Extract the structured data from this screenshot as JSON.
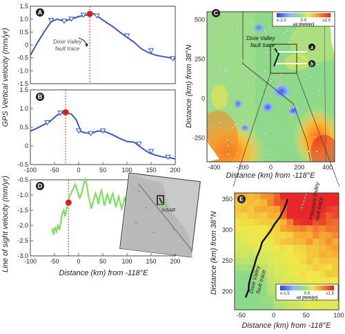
{
  "panels": {
    "A": {
      "letter": "A",
      "annotation_line1": "Dixie Valley",
      "annotation_line2": "fault trace",
      "ytick_labels": [
        "1.5",
        "1.0",
        "0.5",
        "0",
        "-0.5",
        "-1.0",
        "-1.5"
      ],
      "chart_data": {
        "type": "line",
        "x": [
          -100,
          -85,
          -70,
          -57,
          -45,
          -30,
          -15,
          0,
          15,
          25,
          30,
          40,
          55,
          70,
          85,
          100,
          115,
          130,
          145,
          160,
          175,
          190,
          200
        ],
        "y": [
          -0.4,
          0.1,
          0.55,
          0.9,
          1.0,
          0.92,
          1.0,
          1.1,
          1.15,
          1.2,
          1.22,
          1.1,
          0.9,
          0.72,
          0.5,
          0.3,
          0.1,
          -0.15,
          -0.3,
          -0.4,
          -0.45,
          -0.5,
          -0.55
        ],
        "markers_x": [
          -57,
          -30,
          -15,
          10,
          38,
          100,
          150,
          195
        ],
        "markers_y": [
          0.95,
          0.92,
          1.0,
          1.15,
          1.12,
          0.35,
          -0.22,
          -0.53
        ],
        "red_point": [
          23,
          1.2
        ],
        "fault_x": 23,
        "xlim": [
          -100,
          200
        ],
        "ylim": [
          -1.5,
          1.5
        ]
      }
    },
    "B": {
      "letter": "B",
      "ytick_labels": [
        "1.5",
        "1.0",
        "0.5",
        "0",
        "-0.5"
      ],
      "chart_data": {
        "type": "line",
        "x": [
          -100,
          -90,
          -75,
          -60,
          -45,
          -35,
          -27,
          -15,
          -5,
          5,
          15,
          25,
          40,
          55,
          70,
          85,
          100,
          115,
          130,
          145,
          160,
          175,
          190,
          200
        ],
        "y": [
          0.4,
          0.45,
          0.55,
          0.65,
          0.82,
          0.88,
          0.9,
          0.85,
          0.7,
          0.38,
          0.35,
          0.33,
          0.4,
          0.38,
          0.3,
          0.2,
          0.12,
          0.1,
          -0.05,
          -0.18,
          -0.25,
          -0.3,
          -0.32,
          -0.35
        ],
        "markers_x": [
          -65,
          -38,
          0,
          25,
          50,
          125,
          150,
          185
        ],
        "markers_y": [
          0.62,
          0.88,
          0.4,
          0.33,
          0.4,
          0.05,
          -0.15,
          -0.3
        ],
        "red_point": [
          -27,
          0.9
        ],
        "fault_x": -27,
        "xlim": [
          -100,
          200
        ],
        "ylim": [
          -0.5,
          1.5
        ]
      }
    },
    "D": {
      "letter": "D",
      "ytick_labels": [
        "-0.5",
        "-1.0",
        "-1.5",
        "-2.0",
        "-2.5",
        "-3.0"
      ],
      "chart_data": {
        "type": "line",
        "x": [
          -55,
          -52,
          -49,
          -46,
          -43,
          -40,
          -37,
          -34,
          -31,
          -28,
          -25,
          -22,
          -19,
          -16,
          -13,
          -10,
          -7,
          -4,
          -1,
          2,
          5,
          8,
          11,
          14,
          17,
          20,
          23,
          26,
          29,
          32,
          35,
          38,
          41,
          44,
          47,
          50,
          53,
          56,
          59,
          62,
          65,
          68,
          71,
          74,
          77,
          80,
          83,
          86,
          89,
          92,
          95,
          98,
          101,
          104
        ],
        "y": [
          -2.1,
          -2.3,
          -2.05,
          -2.2,
          -2.0,
          -2.15,
          -1.9,
          -1.6,
          -1.5,
          -1.7,
          -1.45,
          -1.25,
          -1.05,
          -0.95,
          -0.85,
          -0.75,
          -0.65,
          -0.8,
          -0.95,
          -1.1,
          -1.0,
          -0.8,
          -0.6,
          -0.45,
          -0.7,
          -1.0,
          -1.2,
          -1.45,
          -1.3,
          -1.1,
          -0.95,
          -1.1,
          -1.3,
          -1.0,
          -0.85,
          -1.05,
          -1.35,
          -1.2,
          -0.95,
          -1.1,
          -1.3,
          -1.05,
          -0.95,
          -1.2,
          -1.4,
          -1.2,
          -1.05,
          -1.25,
          -1.45,
          -1.3,
          -1.1,
          -1.2,
          -1.35,
          -1.25
        ],
        "red_point": [
          -21,
          -1.25
        ],
        "fault_x": -21,
        "xlim": [
          -100,
          200
        ],
        "ylim": [
          -3.0,
          -0.5
        ]
      },
      "inset": {
        "label": "InSAR"
      }
    },
    "bottom_x": {
      "ticks": [
        "-100",
        "-50",
        "0",
        "50",
        "100",
        "150",
        "200"
      ],
      "xlabel": "Distance (km) from -118°E"
    },
    "left_ylabel_gps": "GPS Vertical velocity (mm/yr)",
    "left_ylabel_los": "Line of sight velocity (mm/yr)",
    "C": {
      "letter": "C",
      "ylabel": "Distance (km) from 38°N",
      "xlabel": "Distance (km) from -118°E",
      "xticks": [
        "-400",
        "-200",
        "0",
        "200",
        "400"
      ],
      "yticks": [
        "500",
        "250",
        "0",
        "-250"
      ],
      "colorbar": {
        "min": "≤-2.0",
        "mid": "0.0",
        "max": "≥2.0",
        "unit": "uz (mm/yr)"
      },
      "fault_label_1": "Dixie Valley",
      "fault_label_2": "fault trace",
      "profile_a": "a",
      "profile_b": "b"
    },
    "E": {
      "letter": "E",
      "ylabel": "Distance (km) from 38°N",
      "xlabel": "Distance (km) from -118°E",
      "xticks": [
        "-50",
        "0",
        "50",
        "100"
      ],
      "yticks": [
        "350",
        "300",
        "250",
        "200"
      ],
      "colorbar": {
        "min": "≤-1.5",
        "mid": "0.0",
        "max": "≥1.5",
        "unit": "uz (mm/yr)"
      },
      "label_pleasant_1": "Pleasant Valley",
      "label_pleasant_2": "fault trace",
      "label_dixie_1": "Dixie Valley",
      "label_dixie_2": "fault trace"
    }
  },
  "colors": {
    "line_blue": "#3a57c4",
    "line_green": "#7ee05a",
    "red_point": "#d81e1e",
    "fault_dash": "#c93a2a",
    "label_bg": "#ffffff"
  }
}
